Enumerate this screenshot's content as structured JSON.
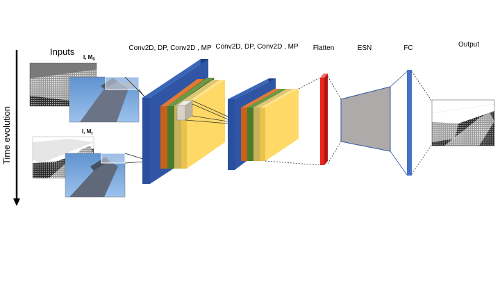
{
  "labels": {
    "inputs": "Inputs",
    "input0_letter": "I, M",
    "input0_sub": "0",
    "input1_letter": "I, M",
    "input1_sub": "t",
    "time_axis": "Time evolution",
    "block1": "Conv2D, DP, Conv2D , MP",
    "block2": "Conv2D, DP, Conv2D , MP",
    "flatten": "Flatten",
    "esn": "ESN",
    "fc": "FC",
    "output": "Output"
  },
  "colors": {
    "conv_blue": "#2f55a4",
    "conv_orange": "#c8601d",
    "conv_green": "#4a7b2a",
    "conv_tan": "#c8b25c",
    "conv_yellow": "#ffd966",
    "flatten_red": "#e8251f",
    "esn_gray": "#aeaaaa",
    "fc_blue": "#4472c4",
    "sky": "#6e9fd6"
  }
}
